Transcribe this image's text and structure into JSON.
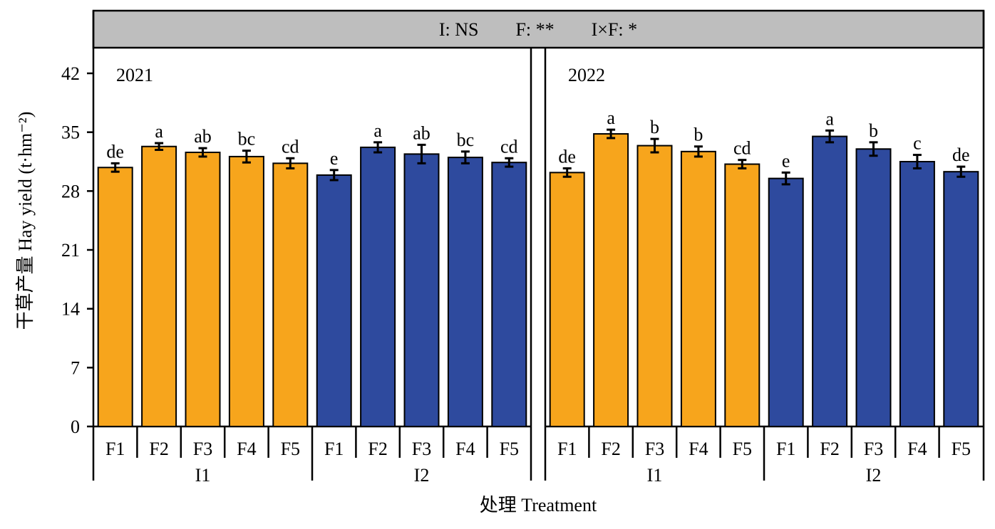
{
  "chart_data": {
    "type": "bar",
    "header_text": "I: NS        F: **        I×F: *",
    "ylabel": "干草产量 Hay yield (t·hm⁻²)",
    "xlabel": "处理 Treatment",
    "ylim": [
      0,
      45
    ],
    "yticks": [
      0,
      7,
      14,
      21,
      28,
      35,
      42
    ],
    "grid": false,
    "colors": {
      "I1": "#F7A51C",
      "I2": "#2E4A9E"
    },
    "panels": [
      {
        "year": "2021",
        "groups": [
          {
            "name": "I1",
            "bars": [
              {
                "cat": "F1",
                "value": 30.8,
                "err": 0.5,
                "letter": "de"
              },
              {
                "cat": "F2",
                "value": 33.3,
                "err": 0.4,
                "letter": "a"
              },
              {
                "cat": "F3",
                "value": 32.6,
                "err": 0.5,
                "letter": "ab"
              },
              {
                "cat": "F4",
                "value": 32.1,
                "err": 0.7,
                "letter": "bc"
              },
              {
                "cat": "F5",
                "value": 31.3,
                "err": 0.6,
                "letter": "cd"
              }
            ]
          },
          {
            "name": "I2",
            "bars": [
              {
                "cat": "F1",
                "value": 29.9,
                "err": 0.6,
                "letter": "e"
              },
              {
                "cat": "F2",
                "value": 33.2,
                "err": 0.6,
                "letter": "a"
              },
              {
                "cat": "F3",
                "value": 32.4,
                "err": 1.1,
                "letter": "ab"
              },
              {
                "cat": "F4",
                "value": 32.0,
                "err": 0.7,
                "letter": "bc"
              },
              {
                "cat": "F5",
                "value": 31.4,
                "err": 0.5,
                "letter": "cd"
              }
            ]
          }
        ]
      },
      {
        "year": "2022",
        "groups": [
          {
            "name": "I1",
            "bars": [
              {
                "cat": "F1",
                "value": 30.2,
                "err": 0.5,
                "letter": "de"
              },
              {
                "cat": "F2",
                "value": 34.8,
                "err": 0.5,
                "letter": "a"
              },
              {
                "cat": "F3",
                "value": 33.4,
                "err": 0.8,
                "letter": "b"
              },
              {
                "cat": "F4",
                "value": 32.7,
                "err": 0.6,
                "letter": "b"
              },
              {
                "cat": "F5",
                "value": 31.2,
                "err": 0.5,
                "letter": "cd"
              }
            ]
          },
          {
            "name": "I2",
            "bars": [
              {
                "cat": "F1",
                "value": 29.5,
                "err": 0.7,
                "letter": "e"
              },
              {
                "cat": "F2",
                "value": 34.5,
                "err": 0.7,
                "letter": "a"
              },
              {
                "cat": "F3",
                "value": 33.0,
                "err": 0.8,
                "letter": "b"
              },
              {
                "cat": "F4",
                "value": 31.5,
                "err": 0.8,
                "letter": "c"
              },
              {
                "cat": "F5",
                "value": 30.3,
                "err": 0.6,
                "letter": "de"
              }
            ]
          }
        ]
      }
    ]
  }
}
